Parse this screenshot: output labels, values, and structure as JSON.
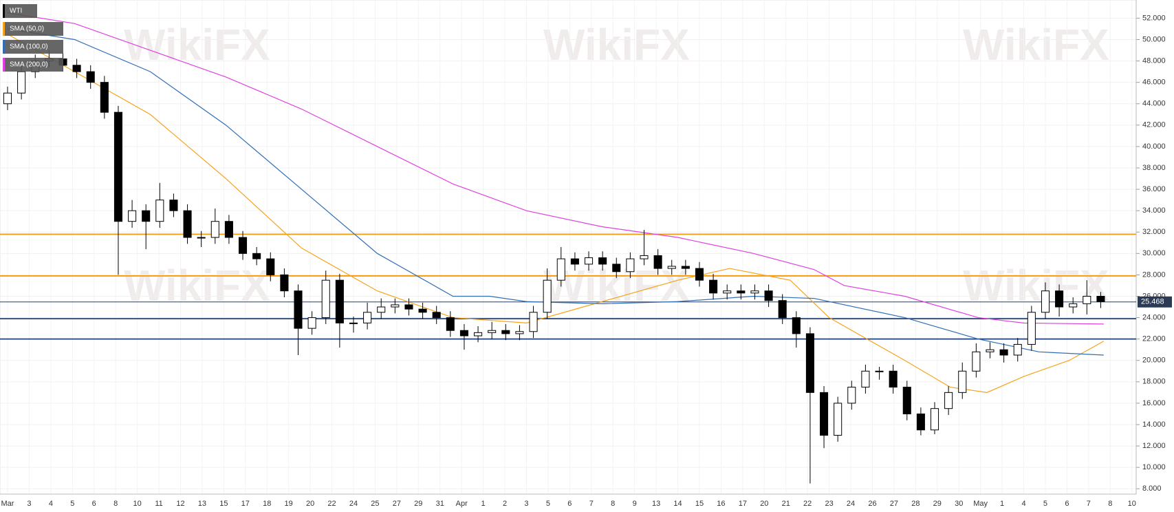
{
  "chart_data": {
    "type": "candlestick",
    "name": "WTI",
    "watermark": "WikiFX",
    "categories": [
      "Mar",
      "3",
      "4",
      "5",
      "6",
      "8",
      "10",
      "11",
      "12",
      "13",
      "15",
      "17",
      "18",
      "19",
      "20",
      "22",
      "24",
      "25",
      "27",
      "29",
      "31",
      "Apr",
      "1",
      "2",
      "3",
      "5",
      "6",
      "7",
      "8",
      "9",
      "13",
      "14",
      "15",
      "16",
      "17",
      "20",
      "21",
      "22",
      "23",
      "24",
      "26",
      "27",
      "28",
      "29",
      "30",
      "May",
      "1",
      "4",
      "5",
      "6",
      "7",
      "8",
      "10"
    ],
    "xlim": [
      -0.35,
      52.2
    ],
    "ylim": [
      7.5,
      53.7
    ],
    "yticks": [
      {
        "value": 8,
        "label": "8.000"
      },
      {
        "value": 10,
        "label": "10.000"
      },
      {
        "value": 12,
        "label": "12.000"
      },
      {
        "value": 14,
        "label": "14.000"
      },
      {
        "value": 16,
        "label": "16.000"
      },
      {
        "value": 18,
        "label": "18.000"
      },
      {
        "value": 20,
        "label": "20.000"
      },
      {
        "value": 22,
        "label": "22.000"
      },
      {
        "value": 24,
        "label": "24.000"
      },
      {
        "value": 26,
        "label": "26.000"
      },
      {
        "value": 28,
        "label": "28.000"
      },
      {
        "value": 30,
        "label": "30.000"
      },
      {
        "value": 32,
        "label": "32.000"
      },
      {
        "value": 34,
        "label": "34.000"
      },
      {
        "value": 36,
        "label": "36.000"
      },
      {
        "value": 38,
        "label": "38.000"
      },
      {
        "value": 40,
        "label": "40.000"
      },
      {
        "value": 42,
        "label": "42.000"
      },
      {
        "value": 44,
        "label": "44.000"
      },
      {
        "value": 46,
        "label": "46.000"
      },
      {
        "value": 48,
        "label": "48.000"
      },
      {
        "value": 50,
        "label": "50.000"
      },
      {
        "value": 52,
        "label": "52.000"
      }
    ],
    "grid": true,
    "up_color": "#ffffff",
    "down_color": "#000000",
    "x": [
      0,
      0.64,
      1.28,
      1.92,
      2.56,
      3.2,
      3.84,
      4.48,
      5.12,
      5.76,
      6.4,
      7.04,
      7.68,
      8.32,
      8.96,
      9.6,
      10.24,
      10.88,
      11.52,
      12.16,
      12.8,
      13.44,
      14.08,
      14.72,
      15.36,
      16,
      16.64,
      17.28,
      17.92,
      18.56,
      19.2,
      19.84,
      20.48,
      21.12,
      21.76,
      22.4,
      23.04,
      23.68,
      24.32,
      24.96,
      25.6,
      26.24,
      26.88,
      27.52,
      28.16,
      28.8,
      29.44,
      30.08,
      30.72,
      31.36,
      32,
      32.64,
      33.28,
      33.92,
      34.56,
      35.2,
      35.84,
      36.48,
      37.12,
      37.76,
      38.4,
      39.04,
      39.68,
      40.32,
      40.96,
      41.6,
      42.24,
      42.88,
      43.52,
      44.16,
      44.8,
      45.44,
      46.08,
      46.72,
      47.36,
      48,
      48.64,
      49.28,
      49.92,
      50.56
    ],
    "open": [
      44,
      45,
      47,
      48,
      48.2,
      47.6,
      47,
      46,
      43.2,
      33,
      34,
      33,
      35,
      34,
      31.5,
      31.5,
      33,
      31.5,
      30,
      29.5,
      28,
      26.5,
      23,
      24,
      27.5,
      23.5,
      23.5,
      24.5,
      25,
      25.2,
      24.8,
      24.5,
      24,
      22.8,
      22.3,
      22.6,
      22.8,
      22.5,
      22.7,
      24.5,
      27.5,
      29.5,
      29,
      29.6,
      29,
      28.3,
      29.5,
      29.8,
      28.6,
      28.8,
      28.6,
      27.5,
      26.3,
      26.5,
      26.3,
      26.5,
      25.6,
      24,
      22.5,
      17,
      13,
      16,
      17.5,
      19,
      19,
      17.5,
      15,
      13.5,
      15.5,
      17,
      19,
      20.8,
      21,
      20.5,
      21.5,
      24.5,
      26.5,
      25,
      25.3,
      26
    ],
    "high": [
      45.6,
      47.6,
      48.6,
      49,
      48.8,
      48.2,
      47.6,
      46.6,
      43.8,
      35,
      34.6,
      36.6,
      35.6,
      34.6,
      32.1,
      34.2,
      33.6,
      32.1,
      30.6,
      30.1,
      28.6,
      27.1,
      24.6,
      28.4,
      28.1,
      24.1,
      25.4,
      25.8,
      25.8,
      25.8,
      25.4,
      25.1,
      24.6,
      23.4,
      23.2,
      23.6,
      23.4,
      23.3,
      25.1,
      28.6,
      30.6,
      30.1,
      30.2,
      30.2,
      29.6,
      30.1,
      32.2,
      30.4,
      29.4,
      29.4,
      29.2,
      28.1,
      27.1,
      27.1,
      27.1,
      27.1,
      26.2,
      24.6,
      23.1,
      17.6,
      16.6,
      18.1,
      19.6,
      19.4,
      19.6,
      18.1,
      15.6,
      16.1,
      17.6,
      19.8,
      21.6,
      21.7,
      21.6,
      22.1,
      25.1,
      27.3,
      27.1,
      25.9,
      27.5,
      26.4
    ],
    "low": [
      43.4,
      44.4,
      46.4,
      47.4,
      47,
      46.4,
      45.4,
      42.6,
      28,
      32.4,
      30.4,
      32.4,
      33.4,
      30.9,
      30.6,
      30.9,
      30.9,
      29.4,
      28.9,
      27.4,
      25.9,
      20.5,
      22.4,
      23.4,
      21.2,
      22.6,
      22.9,
      23.9,
      24.4,
      24.2,
      23.9,
      23.4,
      22.2,
      21,
      21.7,
      22,
      21.9,
      21.9,
      22.1,
      23.9,
      26.9,
      28.4,
      28.4,
      28.4,
      27.7,
      27.7,
      28.9,
      28,
      28,
      28,
      26.9,
      25.7,
      25.7,
      25.7,
      25.7,
      25,
      23.4,
      21.2,
      8.5,
      11.8,
      12.4,
      15.4,
      16.9,
      18.2,
      16.9,
      14.4,
      13,
      13.1,
      14.9,
      16.4,
      18.4,
      20.2,
      19.8,
      19.9,
      20.9,
      23.9,
      24.1,
      24.4,
      24.3,
      24.9
    ],
    "close": [
      45,
      47,
      48,
      48.2,
      47.6,
      47,
      46,
      43.2,
      33,
      34,
      33,
      35,
      34,
      31.5,
      31.5,
      33,
      31.5,
      30,
      29.5,
      28,
      26.5,
      23,
      24,
      27.5,
      23.5,
      23.5,
      24.5,
      25,
      25.2,
      24.8,
      24.5,
      24,
      22.8,
      22.3,
      22.6,
      22.8,
      22.5,
      22.7,
      24.5,
      27.5,
      29.5,
      29,
      29.6,
      29,
      28.3,
      29.5,
      29.8,
      28.6,
      28.8,
      28.6,
      27.5,
      26.3,
      26.5,
      26.3,
      26.5,
      25.6,
      24,
      22.5,
      17,
      13,
      16,
      17.5,
      19,
      19,
      17.5,
      15,
      13.5,
      15.5,
      17,
      19,
      20.8,
      21,
      20.5,
      21.5,
      24.5,
      26.5,
      25,
      25.3,
      26,
      25.5
    ],
    "series": [
      {
        "name": "SMA (50,0)",
        "color": "#f7a21b",
        "x": [
          0,
          3.1,
          6.6,
          10.1,
          13.6,
          17.1,
          20.6,
          24,
          27.5,
          31,
          33.4,
          36.2,
          38,
          41.5,
          43.6,
          45.3,
          47,
          49.1,
          50.7
        ],
        "values": [
          50.5,
          47,
          43,
          37,
          30.5,
          26.5,
          24,
          23.5,
          25.5,
          27.5,
          28.6,
          27.5,
          24,
          20,
          17.5,
          17,
          18.5,
          20,
          21.8
        ]
      },
      {
        "name": "SMA (100,0)",
        "color": "#2f6eb5",
        "x": [
          0,
          3.1,
          6.6,
          10.1,
          13.6,
          17.1,
          20.6,
          22.3,
          24,
          27.5,
          31,
          34.5,
          37.3,
          41.5,
          44.9,
          47.7,
          50.7
        ],
        "values": [
          51,
          50,
          47,
          42,
          36,
          30,
          26,
          26,
          25.5,
          25.3,
          25.5,
          26,
          25.8,
          24,
          22,
          20.8,
          20.5
        ]
      },
      {
        "name": "SMA (200,0)",
        "color": "#e040e0",
        "x": [
          0,
          3.1,
          6.6,
          10.1,
          13.6,
          17.1,
          20.6,
          24,
          27.5,
          31,
          34.5,
          37.3,
          38.7,
          41.5,
          44.9,
          47,
          50.7
        ],
        "values": [
          52.5,
          51.5,
          49,
          46.5,
          43.5,
          40,
          36.5,
          34,
          32.5,
          31.5,
          30,
          28.5,
          27,
          26,
          24,
          23.5,
          23.4
        ]
      }
    ],
    "levels": [
      {
        "value": 31.8,
        "color": "#f59a0c"
      },
      {
        "value": 27.9,
        "color": "#f59a0c"
      },
      {
        "value": 23.9,
        "color": "#1f3f7a"
      },
      {
        "value": 22.0,
        "color": "#1f3f7a"
      }
    ],
    "last_price": 25.468,
    "last_price_color": "#2b3a55"
  }
}
